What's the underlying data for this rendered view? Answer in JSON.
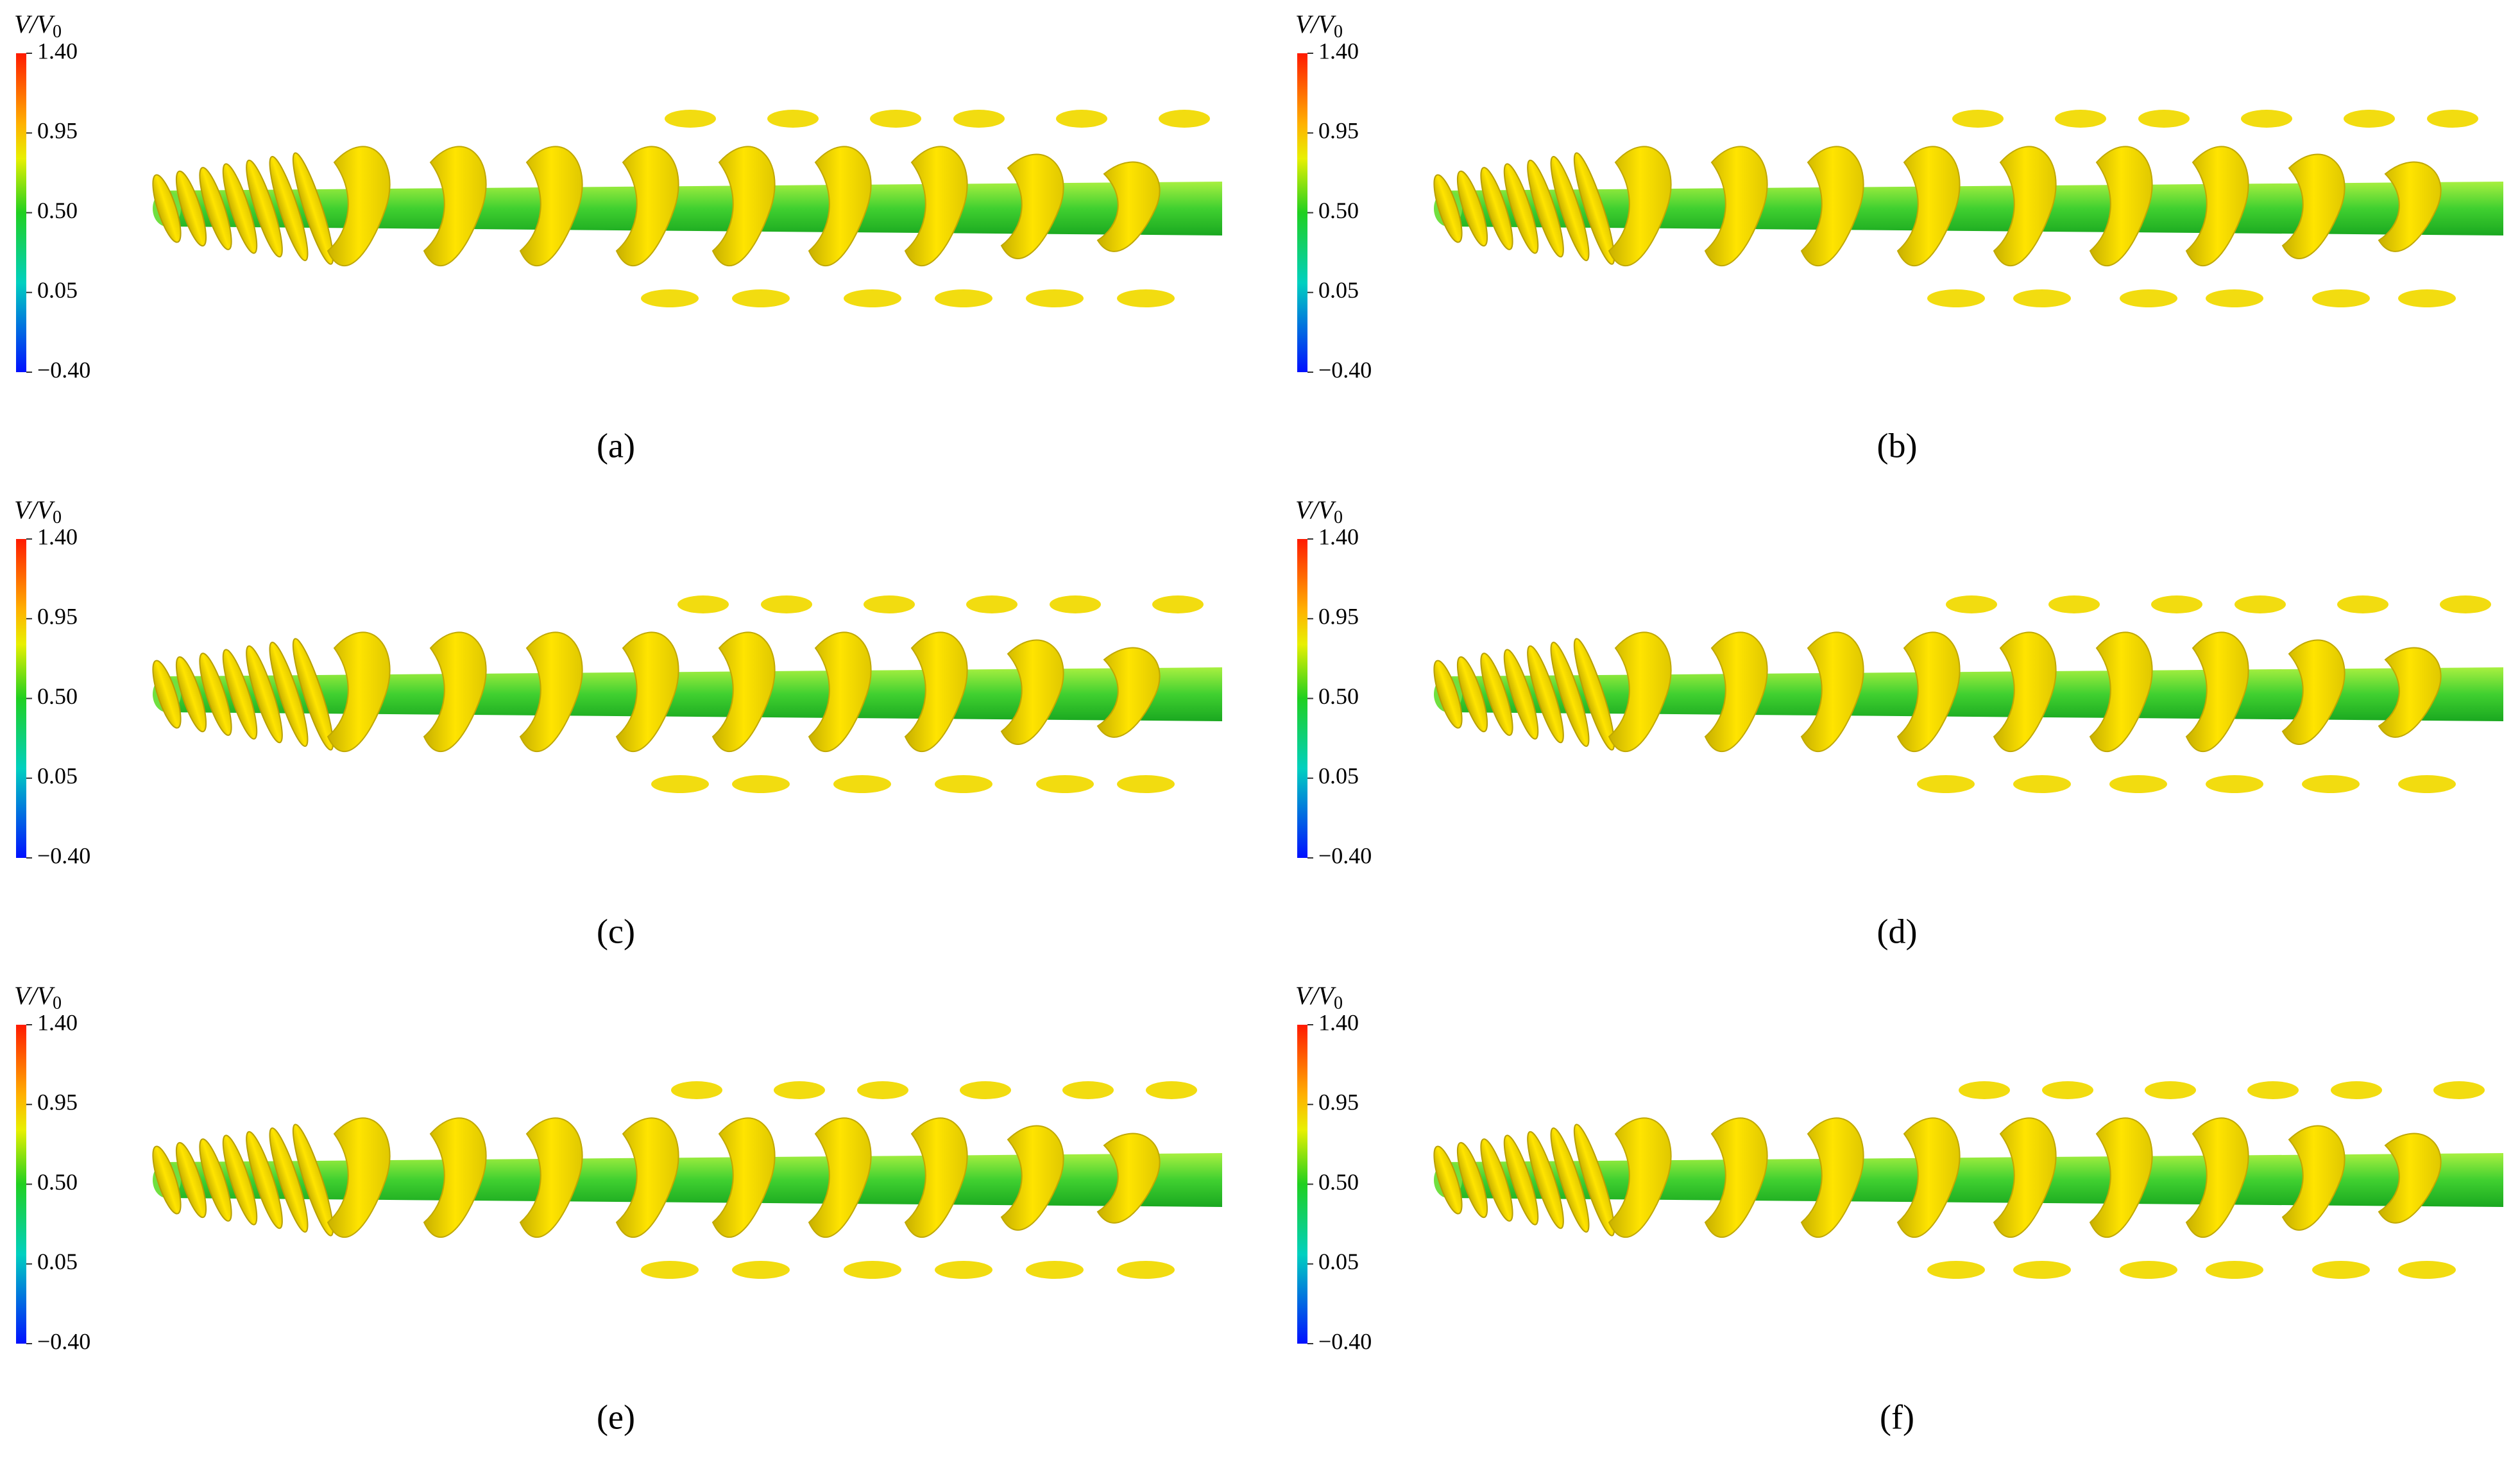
{
  "colorbar": {
    "label": "V/V",
    "label_subscript": "0",
    "ticks": [
      "1.40",
      "0.95",
      "0.50",
      "0.05",
      "−0.40"
    ]
  },
  "panels": [
    {
      "label": "(a)"
    },
    {
      "label": "(b)"
    },
    {
      "label": "(c)"
    },
    {
      "label": "(d)"
    },
    {
      "label": "(e)"
    },
    {
      "label": "(f)"
    }
  ]
}
